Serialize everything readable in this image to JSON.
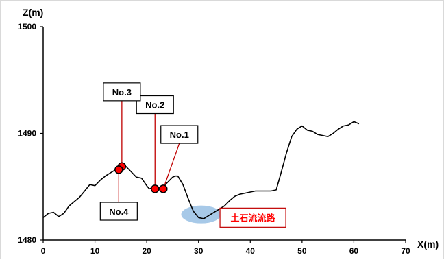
{
  "chart_data": {
    "type": "line",
    "title": "",
    "xlabel": "X(m)",
    "ylabel": "Z(m)",
    "xlim": [
      0,
      70
    ],
    "ylim": [
      1480,
      1500
    ],
    "xticks": [
      0,
      10,
      20,
      30,
      40,
      50,
      60,
      70
    ],
    "yticks": [
      1480,
      1490,
      1500
    ],
    "grid": false,
    "legend": false,
    "series": [
      {
        "values_x": [
          0,
          1,
          2,
          3,
          4,
          5,
          6,
          7,
          8,
          9,
          10,
          11,
          12,
          13,
          14,
          15,
          16,
          17,
          18,
          19,
          20,
          20.5,
          21,
          22,
          23,
          24,
          25,
          25.5,
          26,
          27,
          28,
          29,
          30,
          31,
          32,
          33,
          34,
          35,
          36,
          37,
          38,
          39,
          40,
          41,
          42,
          43,
          44,
          45,
          46,
          47,
          48,
          49,
          50,
          51,
          52,
          53,
          54,
          55,
          56,
          57,
          58,
          59,
          60,
          61
        ],
        "values_y": [
          1482.1,
          1482.5,
          1482.6,
          1482.2,
          1482.5,
          1483.2,
          1483.6,
          1484.0,
          1484.6,
          1485.2,
          1485.1,
          1485.6,
          1486.0,
          1486.3,
          1486.6,
          1486.8,
          1486.9,
          1486.4,
          1485.9,
          1485.8,
          1485.1,
          1484.8,
          1484.9,
          1485.0,
          1484.9,
          1485.4,
          1485.9,
          1486.0,
          1486.0,
          1485.2,
          1483.9,
          1482.7,
          1482.1,
          1482.0,
          1482.3,
          1482.6,
          1482.9,
          1483.2,
          1483.7,
          1484.1,
          1484.3,
          1484.4,
          1484.5,
          1484.6,
          1484.6,
          1484.6,
          1484.6,
          1484.7,
          1486.4,
          1488.2,
          1489.7,
          1490.4,
          1490.7,
          1490.3,
          1490.2,
          1489.9,
          1489.8,
          1489.7,
          1490.0,
          1490.4,
          1490.7,
          1490.8,
          1491.1,
          1490.9
        ]
      }
    ],
    "points": [
      {
        "label": "No.1",
        "x": 23.2,
        "y": 1484.8,
        "label_x": 26.3,
        "label_y": 1489.9
      },
      {
        "label": "No.2",
        "x": 21.6,
        "y": 1484.8,
        "label_x": 21.6,
        "label_y": 1492.7
      },
      {
        "label": "No.3",
        "x": 15.2,
        "y": 1486.9,
        "label_x": 15.2,
        "label_y": 1493.9
      },
      {
        "label": "No.4",
        "x": 14.6,
        "y": 1486.6,
        "label_x": 14.6,
        "label_y": 1482.7
      }
    ],
    "annotations": [
      {
        "text": "土石流流路",
        "x": 30.5,
        "y": 1482.4,
        "label_x": 40.5,
        "label_y": 1482.1
      }
    ],
    "colors": {
      "line": "#000000",
      "marker_fill": "#ff0000",
      "marker_stroke": "#000000",
      "callout_line": "#c00000",
      "ellipse": "#9dc3e6",
      "annotation_text": "#ff0000",
      "annotation_border": "#c00000"
    }
  }
}
